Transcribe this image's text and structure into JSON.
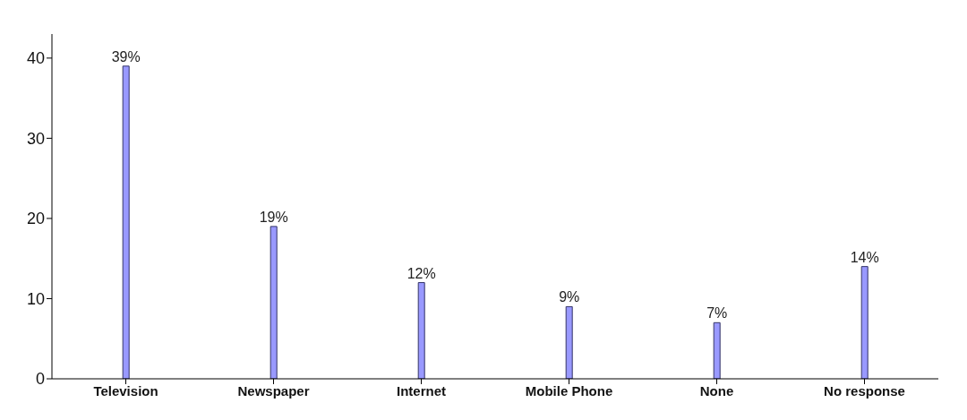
{
  "chart_data": {
    "type": "bar",
    "categories": [
      "Television",
      "Newspaper",
      "Internet",
      "Mobile Phone",
      "None",
      "No response"
    ],
    "values": [
      39,
      19,
      12,
      9,
      7,
      14
    ],
    "value_labels": [
      "39%",
      "19%",
      "12%",
      "9%",
      "7%",
      "14%"
    ],
    "color": "#9999ff",
    "ylim": [
      0,
      43
    ],
    "yticks": [
      0,
      10,
      20,
      30,
      40
    ],
    "grid": false,
    "legend": false
  }
}
